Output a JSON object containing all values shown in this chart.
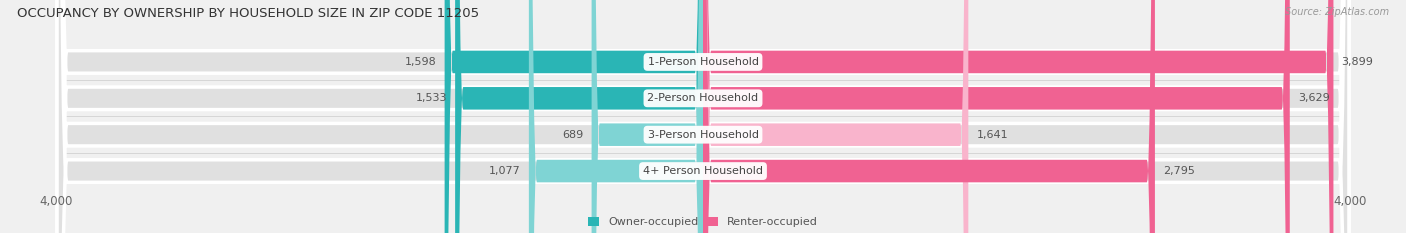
{
  "title": "OCCUPANCY BY OWNERSHIP BY HOUSEHOLD SIZE IN ZIP CODE 11205",
  "source": "Source: ZipAtlas.com",
  "categories": [
    "1-Person Household",
    "2-Person Household",
    "3-Person Household",
    "4+ Person Household"
  ],
  "owner_values": [
    1598,
    1533,
    689,
    1077
  ],
  "renter_values": [
    3899,
    3629,
    1641,
    2795
  ],
  "owner_color_dark": "#2ab5b5",
  "owner_color_light": "#7fd4d4",
  "renter_color_dark": "#f06292",
  "renter_color_light": "#f9b4cc",
  "axis_max": 4000,
  "bg_color": "#f0f0f0",
  "bar_bg_color": "#e0e0e0",
  "bar_bg_edge": "#ffffff",
  "title_fontsize": 9.5,
  "label_fontsize": 8,
  "tick_fontsize": 8.5,
  "legend_fontsize": 8,
  "source_fontsize": 7,
  "owner_dark_threshold": 1100,
  "renter_dark_threshold": 2500
}
